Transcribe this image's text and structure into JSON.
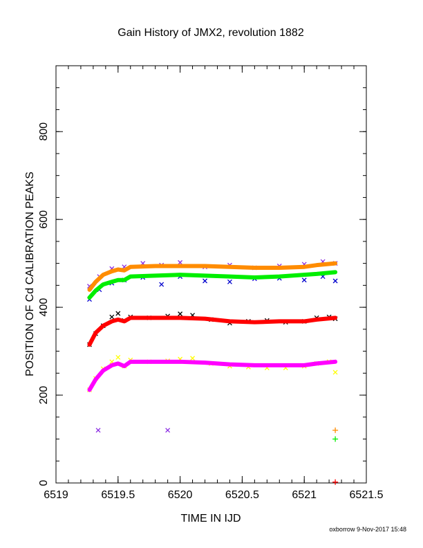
{
  "chart_data": {
    "type": "scatter",
    "title": "Gain History of JMX2, revolution 1882",
    "xlabel": "TIME IN IJD",
    "ylabel": "POSITION OF Cd CALIBRATION PEAKS",
    "xlim": [
      6519,
      6521.5
    ],
    "ylim": [
      0,
      950
    ],
    "xticks": [
      6519,
      6519.5,
      6520,
      6520.5,
      6521,
      6521.5
    ],
    "xtick_labels": [
      "6519",
      "6519.5",
      "6520",
      "6520.5",
      "6521",
      "6521.5"
    ],
    "yticks": [
      0,
      200,
      400,
      600,
      800
    ],
    "ytick_labels": [
      "0",
      "200",
      "400",
      "600",
      "800"
    ],
    "grid": false,
    "series": [
      {
        "kind": "scatter",
        "marker": "x",
        "color": "#8a2be2",
        "x": [
          6519.27,
          6519.35,
          6519.45,
          6519.55,
          6519.7,
          6519.85,
          6520.0,
          6520.2,
          6520.4,
          6520.6,
          6520.8,
          6521.0,
          6521.15,
          6521.25
        ],
        "y": [
          448,
          470,
          488,
          492,
          500,
          496,
          502,
          492,
          496,
          490,
          494,
          498,
          504,
          500
        ]
      },
      {
        "kind": "scatter",
        "marker": "x",
        "color": "#0000cd",
        "x": [
          6519.27,
          6519.35,
          6519.45,
          6519.55,
          6519.7,
          6519.85,
          6520.0,
          6520.2,
          6520.4,
          6520.6,
          6520.8,
          6521.0,
          6521.15,
          6521.25
        ],
        "y": [
          418,
          440,
          455,
          462,
          468,
          452,
          470,
          460,
          458,
          465,
          466,
          462,
          470,
          460
        ]
      },
      {
        "kind": "line",
        "color": "#ff8c00",
        "x": [
          6519.27,
          6519.32,
          6519.38,
          6519.45,
          6519.5,
          6519.55,
          6519.6,
          6519.8,
          6520.0,
          6520.2,
          6520.4,
          6520.6,
          6520.8,
          6521.0,
          6521.1,
          6521.25
        ],
        "y": [
          440,
          458,
          474,
          482,
          486,
          484,
          492,
          494,
          494,
          494,
          492,
          490,
          490,
          492,
          496,
          500
        ]
      },
      {
        "kind": "line",
        "color": "#00ee00",
        "x": [
          6519.27,
          6519.32,
          6519.38,
          6519.45,
          6519.5,
          6519.55,
          6519.6,
          6519.8,
          6520.0,
          6520.2,
          6520.4,
          6520.6,
          6520.8,
          6521.0,
          6521.1,
          6521.25
        ],
        "y": [
          422,
          438,
          452,
          458,
          462,
          462,
          470,
          472,
          474,
          472,
          470,
          468,
          470,
          474,
          476,
          480
        ]
      },
      {
        "kind": "scatter",
        "marker": "x",
        "color": "#000000",
        "x": [
          6519.27,
          6519.32,
          6519.38,
          6519.45,
          6519.5,
          6519.55,
          6519.6,
          6519.75,
          6519.9,
          6520.0,
          6520.1,
          6520.25,
          6520.4,
          6520.55,
          6520.7,
          6520.85,
          6521.0,
          6521.1,
          6521.2,
          6521.25
        ],
        "y": [
          315,
          340,
          358,
          378,
          386,
          370,
          378,
          376,
          380,
          385,
          382,
          372,
          364,
          368,
          370,
          366,
          368,
          376,
          378,
          374
        ]
      },
      {
        "kind": "line",
        "color": "#ff0000",
        "x": [
          6519.27,
          6519.32,
          6519.38,
          6519.45,
          6519.5,
          6519.55,
          6519.6,
          6519.8,
          6520.0,
          6520.2,
          6520.4,
          6520.6,
          6520.8,
          6521.0,
          6521.1,
          6521.25
        ],
        "y": [
          315,
          342,
          358,
          368,
          372,
          368,
          376,
          376,
          376,
          374,
          368,
          366,
          368,
          368,
          372,
          376
        ]
      },
      {
        "kind": "scatter",
        "marker": "x",
        "color": "#ffff00",
        "x": [
          6519.27,
          6519.32,
          6519.38,
          6519.45,
          6519.5,
          6519.55,
          6519.6,
          6519.75,
          6519.9,
          6520.0,
          6520.1,
          6520.25,
          6520.4,
          6520.55,
          6520.7,
          6520.85,
          6521.0,
          6521.1,
          6521.2,
          6521.25
        ],
        "y": [
          212,
          238,
          260,
          276,
          286,
          266,
          280,
          276,
          278,
          282,
          284,
          272,
          266,
          264,
          262,
          262,
          266,
          272,
          276,
          252
        ]
      },
      {
        "kind": "line",
        "color": "#ff00ff",
        "x": [
          6519.27,
          6519.32,
          6519.38,
          6519.45,
          6519.5,
          6519.55,
          6519.6,
          6519.8,
          6520.0,
          6520.2,
          6520.4,
          6520.6,
          6520.8,
          6521.0,
          6521.1,
          6521.25
        ],
        "y": [
          212,
          236,
          256,
          268,
          272,
          266,
          276,
          276,
          276,
          274,
          270,
          268,
          268,
          268,
          272,
          276
        ]
      },
      {
        "kind": "scatter",
        "marker": "x",
        "color": "#8a2be2",
        "x": [
          6519.34,
          6519.9
        ],
        "y": [
          120,
          120
        ]
      },
      {
        "kind": "scatter",
        "marker": "+",
        "color": "#ff8c00",
        "x": [
          6521.25
        ],
        "y": [
          120
        ]
      },
      {
        "kind": "scatter",
        "marker": "+",
        "color": "#00ee00",
        "x": [
          6521.25
        ],
        "y": [
          100
        ]
      },
      {
        "kind": "scatter",
        "marker": "+",
        "color": "#ff0000",
        "x": [
          6521.25
        ],
        "y": [
          2
        ]
      }
    ]
  },
  "footer": "oxborrow  9-Nov-2017 15:48"
}
